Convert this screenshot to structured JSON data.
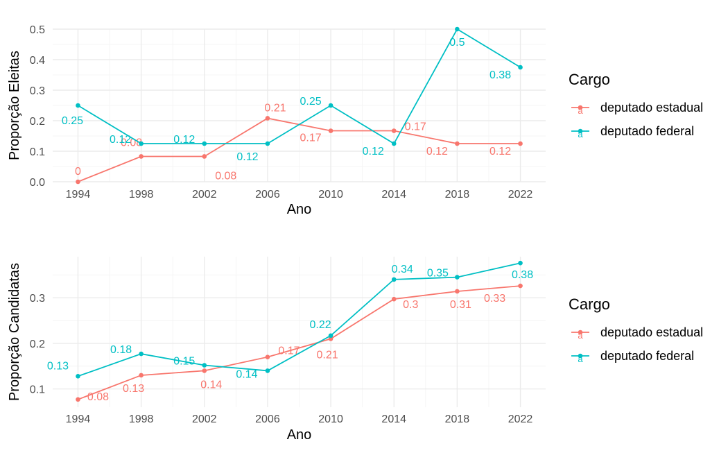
{
  "chart_data": [
    {
      "type": "line",
      "categories": [
        "1994",
        "1998",
        "2002",
        "2006",
        "2010",
        "2014",
        "2018",
        "2022"
      ],
      "x": [
        1994,
        1998,
        2002,
        2006,
        2010,
        2014,
        2018,
        2022
      ],
      "xlabel": "Ano",
      "ylabel": "Proporção Eleitas",
      "ylim": [
        0,
        0.5
      ],
      "yticks": [
        0,
        0.1,
        0.2,
        0.3,
        0.4,
        0.5
      ],
      "ytick_labels": [
        "0.0",
        "0.1",
        "0.2",
        "0.3",
        "0.4",
        "0.5"
      ],
      "legend_title": "Cargo",
      "legend_position": "right",
      "series": [
        {
          "name": "deputado estadual",
          "color": "#F8766D",
          "values": [
            0,
            0.083,
            0.083,
            0.208,
            0.167,
            0.167,
            0.125,
            0.125
          ],
          "labels": [
            "0",
            "0.08",
            "0.08",
            "0.21",
            "0.17",
            "0.17",
            "0.12",
            "0.12"
          ]
        },
        {
          "name": "deputado federal",
          "color": "#00BFC4",
          "values": [
            0.25,
            0.125,
            0.125,
            0.125,
            0.25,
            0.125,
            0.5,
            0.375
          ],
          "labels": [
            "0.25",
            "0.12",
            "0.12",
            "0.12",
            "0.25",
            "0.12",
            "0.5",
            "0.38"
          ]
        }
      ]
    },
    {
      "type": "line",
      "categories": [
        "1994",
        "1998",
        "2002",
        "2006",
        "2010",
        "2014",
        "2018",
        "2022"
      ],
      "x": [
        1994,
        1998,
        2002,
        2006,
        2010,
        2014,
        2018,
        2022
      ],
      "xlabel": "Ano",
      "ylabel": "Proporção Candidatas",
      "ylim": [
        0.06,
        0.39
      ],
      "yticks": [
        0.1,
        0.2,
        0.3
      ],
      "ytick_labels": [
        "0.1",
        "0.2",
        "0.3"
      ],
      "legend_title": "Cargo",
      "legend_position": "right",
      "series": [
        {
          "name": "deputado estadual",
          "color": "#F8766D",
          "values": [
            0.077,
            0.13,
            0.14,
            0.17,
            0.21,
            0.297,
            0.314,
            0.326
          ],
          "labels": [
            "0.08",
            "0.13",
            "0.14",
            "0.17",
            "0.21",
            "0.3",
            "0.31",
            "0.33"
          ]
        },
        {
          "name": "deputado federal",
          "color": "#00BFC4",
          "values": [
            0.128,
            0.177,
            0.152,
            0.14,
            0.217,
            0.34,
            0.345,
            0.376
          ],
          "labels": [
            "0.13",
            "0.18",
            "0.15",
            "0.14",
            "0.22",
            "0.34",
            "0.35",
            "0.38"
          ]
        }
      ]
    }
  ]
}
